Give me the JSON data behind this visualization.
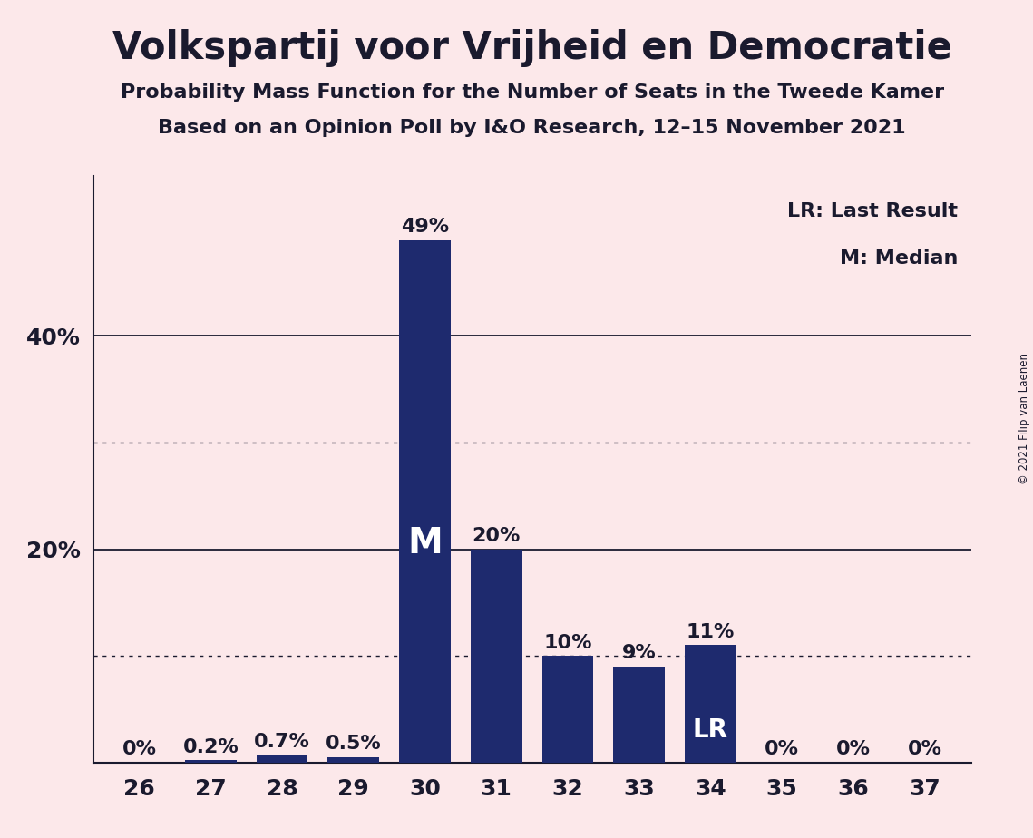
{
  "title": "Volkspartij voor Vrijheid en Democratie",
  "subtitle1": "Probability Mass Function for the Number of Seats in the Tweede Kamer",
  "subtitle2": "Based on an Opinion Poll by I&O Research, 12–15 November 2021",
  "copyright": "© 2021 Filip van Laenen",
  "categories": [
    26,
    27,
    28,
    29,
    30,
    31,
    32,
    33,
    34,
    35,
    36,
    37
  ],
  "values": [
    0.0,
    0.2,
    0.7,
    0.5,
    49.0,
    20.0,
    10.0,
    9.0,
    11.0,
    0.0,
    0.0,
    0.0
  ],
  "bar_color": "#1e2a6e",
  "bg_color": "#fce8ea",
  "label_color": "#1a1a2e",
  "median_bar_index": 4,
  "lr_bar_index": 8,
  "yticks": [
    20,
    40
  ],
  "ytick_labels": [
    "20%",
    "40%"
  ],
  "ylim": [
    0,
    55
  ],
  "dotted_lines": [
    10,
    30
  ],
  "solid_lines": [
    20,
    40
  ],
  "legend_text1": "LR: Last Result",
  "legend_text2": "M: Median",
  "value_labels": [
    "0%",
    "0.2%",
    "0.7%",
    "0.5%",
    "49%",
    "20%",
    "10%",
    "9%",
    "11%",
    "0%",
    "0%",
    "0%"
  ],
  "title_fontsize": 30,
  "subtitle_fontsize": 16,
  "tick_fontsize": 18,
  "bar_label_fontsize": 16,
  "legend_fontsize": 16
}
